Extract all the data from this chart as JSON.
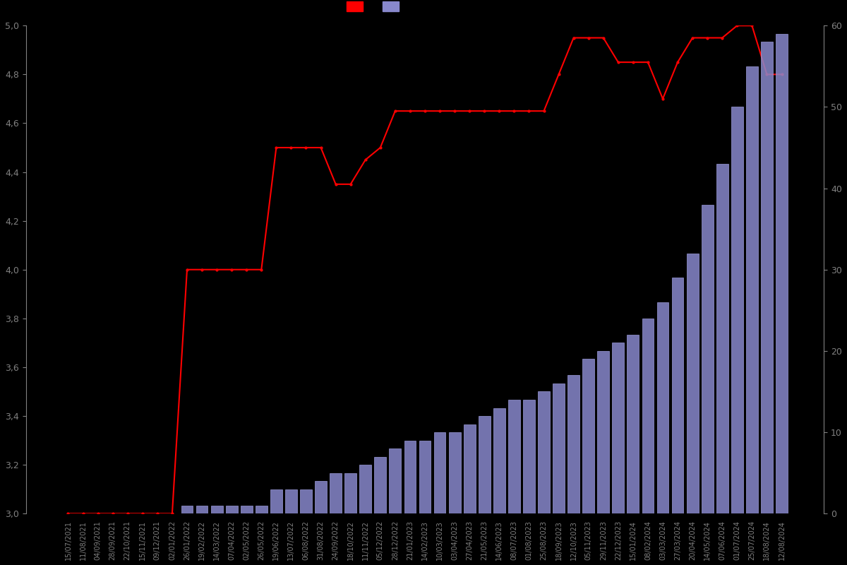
{
  "background_color": "#000000",
  "text_color": "#808080",
  "fig_width": 12.0,
  "fig_height": 8.0,
  "title": "",
  "left_ylim": [
    3.0,
    5.0
  ],
  "right_ylim": [
    0,
    60
  ],
  "left_yticks": [
    3.0,
    3.2,
    3.4,
    3.6,
    3.8,
    4.0,
    4.2,
    4.4,
    4.6,
    4.8,
    5.0
  ],
  "right_yticks": [
    0,
    10,
    20,
    30,
    40,
    50,
    60
  ],
  "bar_color": "#8888cc",
  "bar_edge_color": "#aaaaee",
  "line_color": "#ff0000",
  "line_marker": "o",
  "line_markersize": 2,
  "line_linewidth": 1.5,
  "dates": [
    "15/07/2021",
    "11/08/2021",
    "04/09/2021",
    "28/09/2021",
    "22/10/2021",
    "15/11/2021",
    "09/12/2021",
    "02/01/2022",
    "26/01/2022",
    "19/02/2022",
    "14/03/2022",
    "07/04/2022",
    "02/05/2022",
    "26/05/2022",
    "19/06/2022",
    "13/07/2022",
    "06/08/2022",
    "31/08/2022",
    "24/09/2022",
    "18/10/2022",
    "11/11/2022",
    "05/12/2022",
    "28/12/2022",
    "21/01/2023",
    "14/02/2023",
    "10/03/2023",
    "03/04/2023",
    "27/04/2023",
    "21/05/2023",
    "14/06/2023",
    "08/07/2023",
    "01/08/2023",
    "25/08/2023",
    "18/09/2023",
    "12/10/2023",
    "05/11/2023",
    "29/11/2023",
    "22/12/2023",
    "15/01/2024",
    "08/02/2024",
    "03/03/2024",
    "27/03/2024",
    "20/04/2024",
    "14/05/2024",
    "07/06/2024",
    "01/07/2024",
    "25/07/2024",
    "18/08/2024",
    "12/08/2024"
  ],
  "ratings": [
    3.0,
    3.0,
    3.0,
    3.0,
    3.0,
    3.0,
    3.0,
    3.0,
    4.0,
    4.0,
    4.0,
    4.0,
    4.0,
    4.0,
    4.5,
    4.5,
    4.5,
    4.5,
    4.35,
    4.35,
    4.45,
    4.5,
    4.65,
    4.65,
    4.65,
    4.65,
    4.65,
    4.65,
    4.65,
    4.65,
    4.65,
    4.65,
    4.65,
    4.8,
    4.95,
    4.95,
    4.95,
    4.85,
    4.85,
    4.85,
    4.7,
    4.85,
    4.95,
    4.95,
    4.95,
    5.0,
    5.0,
    4.8,
    4.8
  ],
  "counts": [
    0,
    0,
    0,
    0,
    0,
    0,
    0,
    0,
    1,
    1,
    1,
    1,
    1,
    1,
    3,
    3,
    3,
    4,
    5,
    5,
    6,
    7,
    8,
    9,
    9,
    10,
    10,
    11,
    12,
    13,
    14,
    14,
    15,
    16,
    17,
    19,
    20,
    21,
    22,
    24,
    26,
    29,
    32,
    38,
    43,
    50,
    55,
    58,
    59
  ]
}
